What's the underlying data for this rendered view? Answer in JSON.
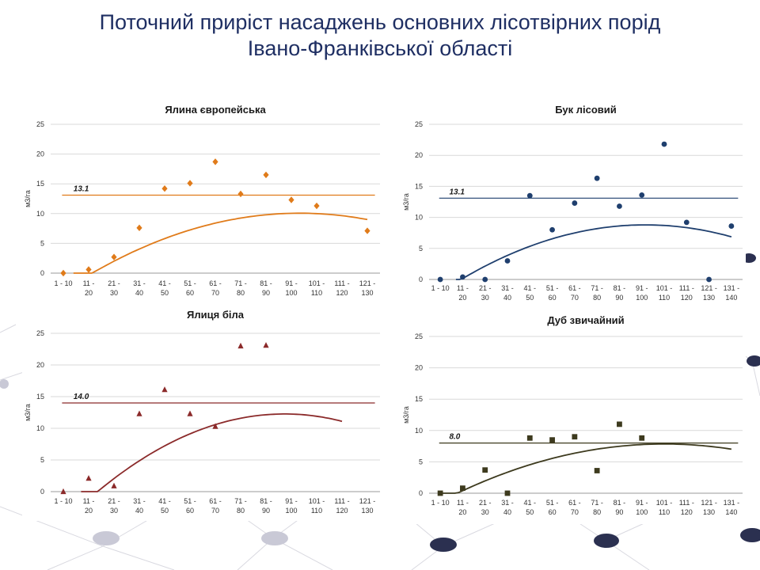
{
  "page": {
    "title_line1": "Поточний приріст насаджень основних лісотвірних порід",
    "title_line2": "Івано-Франківської області"
  },
  "chart_data": [
    {
      "id": "spruce",
      "type": "scatter",
      "title": "Ялина європейська",
      "ylabel": "м3/га",
      "ylim": [
        0,
        25
      ],
      "yticks": [
        0,
        5,
        10,
        15,
        20,
        25
      ],
      "categories": [
        "1 - 10",
        "11 - 20",
        "21 - 30",
        "31 - 40",
        "41 - 50",
        "51 - 60",
        "61 - 70",
        "71 - 80",
        "81 - 90",
        "91 - 100",
        "101 - 110",
        "111 - 120",
        "121 - 130"
      ],
      "values": [
        0.0,
        0.6,
        2.7,
        7.6,
        14.2,
        15.1,
        18.7,
        13.3,
        16.5,
        12.3,
        11.3,
        null,
        7.1
      ],
      "marker": "diamond",
      "color": "#e07b1a",
      "average": 13.1,
      "average_label": "13.1",
      "trend": {
        "type": "polynomial",
        "coef": [
          -3.0,
          2.8,
          -0.15
        ],
        "range": [
          0.4,
          12.0
        ]
      },
      "grid": true
    },
    {
      "id": "beech",
      "type": "scatter",
      "title": "Бук лісовий",
      "ylabel": "м3/га",
      "ylim": [
        0,
        25
      ],
      "yticks": [
        0,
        5,
        10,
        15,
        20,
        25
      ],
      "categories": [
        "1 - 10",
        "11 - 20",
        "21 - 30",
        "31 - 40",
        "41 - 50",
        "51 - 60",
        "61 - 70",
        "71 - 80",
        "81 - 90",
        "91 - 100",
        "101 - 110",
        "111 - 120",
        "121 - 130",
        "131 - 140"
      ],
      "values": [
        0.0,
        0.4,
        0.0,
        3.0,
        13.5,
        8.0,
        12.3,
        16.3,
        11.8,
        13.6,
        21.8,
        9.2,
        0.0,
        8.6
      ],
      "marker": "circle",
      "color": "#1f3f6e",
      "average": 13.1,
      "average_label": "13.1",
      "trend": {
        "type": "polynomial",
        "coef": [
          -2.1,
          2.38,
          -0.13
        ],
        "range": [
          0.7,
          13.0
        ]
      },
      "grid": true
    },
    {
      "id": "fir",
      "type": "scatter",
      "title": "Ялиця біла",
      "ylabel": "м3/га",
      "ylim": [
        0,
        25
      ],
      "yticks": [
        0,
        5,
        10,
        15,
        20,
        25
      ],
      "categories": [
        "1 - 10",
        "11 - 20",
        "21 - 30",
        "31 - 40",
        "41 - 50",
        "51 - 60",
        "61 - 70",
        "71 - 80",
        "81 - 90",
        "91 - 100",
        "101 - 110",
        "111 - 120",
        "121 - 130"
      ],
      "values": [
        0.0,
        2.1,
        0.9,
        12.3,
        16.1,
        12.3,
        10.3,
        23.0,
        23.1,
        null,
        null,
        null,
        null
      ],
      "marker": "triangle",
      "color": "#8b2a2a",
      "average": 14.0,
      "average_label": "14.0",
      "trend": {
        "type": "polynomial",
        "coef": [
          -4.9,
          3.93,
          -0.225
        ],
        "range": [
          0.7,
          11.0
        ]
      },
      "grid": true
    },
    {
      "id": "oak",
      "type": "scatter",
      "title": "Дуб звичайний",
      "ylabel": "м3/га",
      "ylim": [
        0,
        25
      ],
      "yticks": [
        0,
        5,
        10,
        15,
        20,
        25
      ],
      "categories": [
        "1 - 10",
        "11 - 20",
        "21 - 30",
        "31 - 40",
        "41 - 50",
        "51 - 60",
        "61 - 70",
        "71 - 80",
        "81 - 90",
        "91 - 100",
        "101 - 110",
        "111 - 120",
        "121 - 130",
        "131 - 140"
      ],
      "values": [
        0.0,
        0.8,
        3.7,
        0.0,
        8.8,
        8.5,
        9.0,
        3.6,
        11.0,
        8.8,
        null,
        null,
        null,
        null
      ],
      "marker": "square",
      "color": "#3d3a1e",
      "average": 8.0,
      "average_label": "8.0",
      "trend": {
        "type": "polynomial",
        "coef": [
          -1.35,
          1.84,
          -0.092
        ],
        "range": [
          0.0,
          13.0
        ]
      },
      "grid": true
    }
  ]
}
